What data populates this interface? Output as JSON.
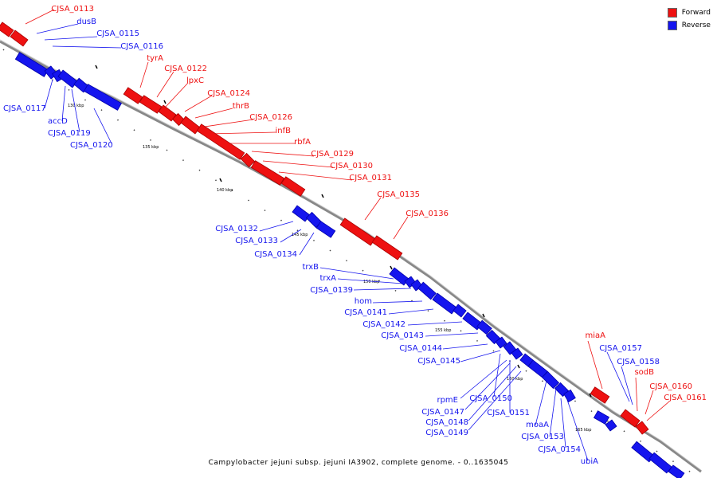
{
  "caption": "Campylobacter jejuni subsp. jejuni IA3902, complete genome. - 0..1635045",
  "legend": {
    "items": [
      {
        "label": "Forward",
        "color": "#ee1111"
      },
      {
        "label": "Reverse",
        "color": "#1515ee"
      }
    ]
  },
  "colors": {
    "forward": "#ee1111",
    "forward_dark": "#aa0000",
    "reverse": "#1515ee",
    "reverse_dark": "#0000aa",
    "backbone": "#888888"
  },
  "tick_labels": [
    "130 kbp",
    "135 kbp",
    "140 kbp",
    "145 kbp",
    "150 kbp",
    "155 kbp",
    "160 kbp",
    "165 kbp"
  ],
  "forward_labels": [
    "CJSA_0113",
    "tyrA",
    "CJSA_0122",
    "lpxC",
    "CJSA_0124",
    "thrB",
    "CJSA_0126",
    "infB",
    "rbfA",
    "CJSA_0129",
    "CJSA_0130",
    "CJSA_0131",
    "CJSA_0135",
    "CJSA_0136",
    "miaA",
    "sodB",
    "CJSA_0160",
    "CJSA_0161"
  ],
  "reverse_labels": [
    "dusB",
    "CJSA_0115",
    "CJSA_0116",
    "CJSA_0117",
    "accD",
    "CJSA_0119",
    "CJSA_0120",
    "CJSA_0132",
    "CJSA_0133",
    "CJSA_0134",
    "trxB",
    "trxA",
    "CJSA_0139",
    "hom",
    "CJSA_0141",
    "CJSA_0142",
    "CJSA_0143",
    "CJSA_0144",
    "CJSA_0145",
    "rpmE",
    "CJSA_0147",
    "CJSA_0148",
    "CJSA_0149",
    "CJSA_0150",
    "CJSA_0151",
    "moaA",
    "CJSA_0153",
    "CJSA_0154",
    "ubiA",
    "CJSA_0157",
    "CJSA_0158"
  ]
}
